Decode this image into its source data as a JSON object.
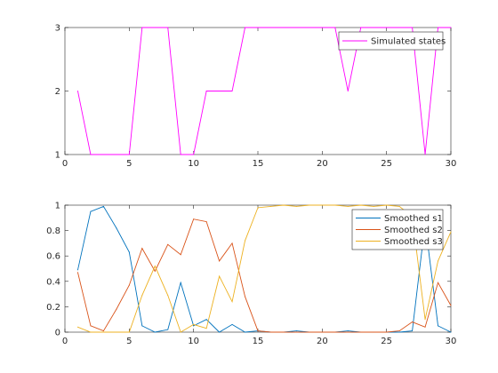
{
  "chart_data": [
    {
      "type": "line",
      "xlim": [
        0,
        30
      ],
      "ylim": [
        1,
        3
      ],
      "xticks": [
        "0",
        "5",
        "10",
        "15",
        "20",
        "25",
        "30"
      ],
      "yticks": [
        "1",
        "2",
        "3"
      ],
      "legend_position": "top-right",
      "grid": false,
      "x": [
        1,
        2,
        3,
        4,
        5,
        6,
        7,
        8,
        9,
        10,
        11,
        12,
        13,
        14,
        15,
        16,
        17,
        18,
        19,
        20,
        21,
        22,
        23,
        24,
        25,
        26,
        27,
        28,
        29,
        30
      ],
      "series": [
        {
          "name": "Simulated states",
          "color": "#ff00ff",
          "values": [
            2,
            1,
            1,
            1,
            1,
            3,
            3,
            3,
            1,
            1,
            2,
            2,
            2,
            3,
            3,
            3,
            3,
            3,
            3,
            3,
            3,
            2,
            3,
            3,
            3,
            3,
            3,
            1,
            3,
            3
          ]
        }
      ]
    },
    {
      "type": "line",
      "xlim": [
        0,
        30
      ],
      "ylim": [
        0,
        1
      ],
      "xticks": [
        "0",
        "5",
        "10",
        "15",
        "20",
        "25",
        "30"
      ],
      "yticks": [
        "0",
        "0.2",
        "0.4",
        "0.6",
        "0.8",
        "1"
      ],
      "legend_position": "top-right",
      "grid": false,
      "x": [
        1,
        2,
        3,
        4,
        5,
        6,
        7,
        8,
        9,
        10,
        11,
        12,
        13,
        14,
        15,
        16,
        17,
        18,
        19,
        20,
        21,
        22,
        23,
        24,
        25,
        26,
        27,
        28,
        29,
        30
      ],
      "series": [
        {
          "name": "Smoothed s1",
          "color": "#0072bd",
          "values": [
            0.49,
            0.95,
            0.99,
            0.82,
            0.63,
            0.05,
            0.0,
            0.02,
            0.39,
            0.05,
            0.1,
            0.0,
            0.06,
            0.0,
            0.01,
            0.0,
            0.0,
            0.01,
            0.0,
            0.0,
            0.0,
            0.01,
            0.0,
            0.0,
            0.0,
            0.0,
            0.01,
            0.86,
            0.05,
            0.0
          ]
        },
        {
          "name": "Smoothed s2",
          "color": "#d95319",
          "values": [
            0.47,
            0.05,
            0.01,
            0.18,
            0.37,
            0.66,
            0.48,
            0.69,
            0.61,
            0.89,
            0.87,
            0.56,
            0.7,
            0.28,
            0.01,
            0.0,
            0.0,
            0.0,
            0.0,
            0.0,
            0.0,
            0.0,
            0.0,
            0.0,
            0.0,
            0.01,
            0.08,
            0.04,
            0.39,
            0.21
          ]
        },
        {
          "name": "Smoothed s3",
          "color": "#edb120",
          "values": [
            0.04,
            0.0,
            0.0,
            0.0,
            0.0,
            0.29,
            0.52,
            0.29,
            0.0,
            0.06,
            0.03,
            0.44,
            0.24,
            0.72,
            0.98,
            0.99,
            1.0,
            0.99,
            1.0,
            1.0,
            1.0,
            0.99,
            1.0,
            0.99,
            1.0,
            0.99,
            0.91,
            0.1,
            0.56,
            0.79
          ]
        }
      ]
    }
  ]
}
